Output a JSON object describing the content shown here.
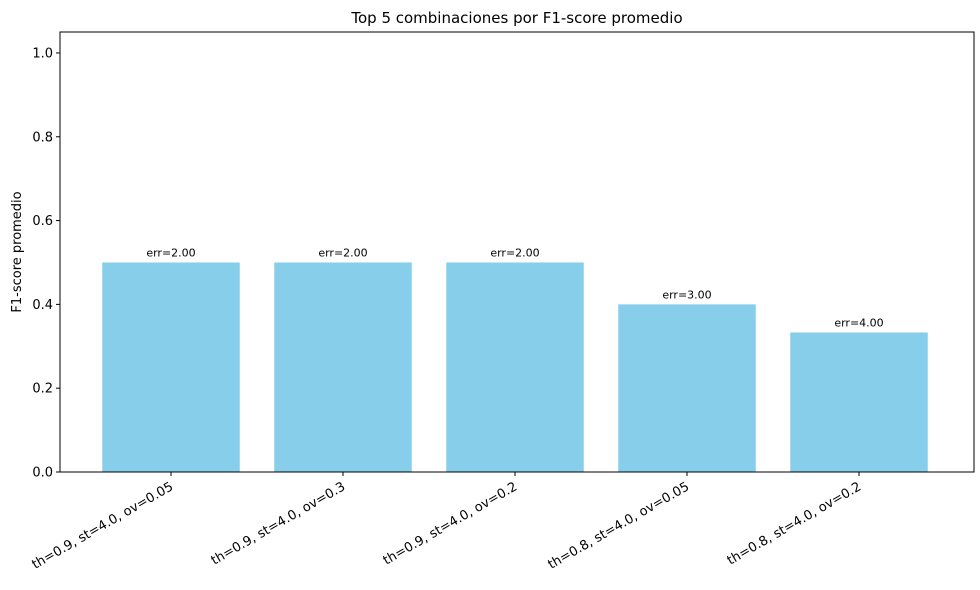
{
  "chart_data": {
    "type": "bar",
    "title": "Top 5 combinaciones por F1-score promedio",
    "xlabel": "",
    "ylabel": "F1-score promedio",
    "ylim": [
      0,
      1.05
    ],
    "yticks": [
      0.0,
      0.2,
      0.4,
      0.6,
      0.8,
      1.0
    ],
    "ytick_labels": [
      "0.0",
      "0.2",
      "0.4",
      "0.6",
      "0.8",
      "1.0"
    ],
    "categories": [
      "th=0.9, st=4.0, ov=0.05",
      "th=0.9, st=4.0, ov=0.3",
      "th=0.9, st=4.0, ov=0.2",
      "th=0.8, st=4.0, ov=0.05",
      "th=0.8, st=4.0, ov=0.2"
    ],
    "values": [
      0.5,
      0.5,
      0.5,
      0.4,
      0.333
    ],
    "data_labels": [
      "err=2.00",
      "err=2.00",
      "err=2.00",
      "err=3.00",
      "err=4.00"
    ],
    "bar_color": "#87ceeb",
    "grid": false,
    "legend": "none"
  }
}
